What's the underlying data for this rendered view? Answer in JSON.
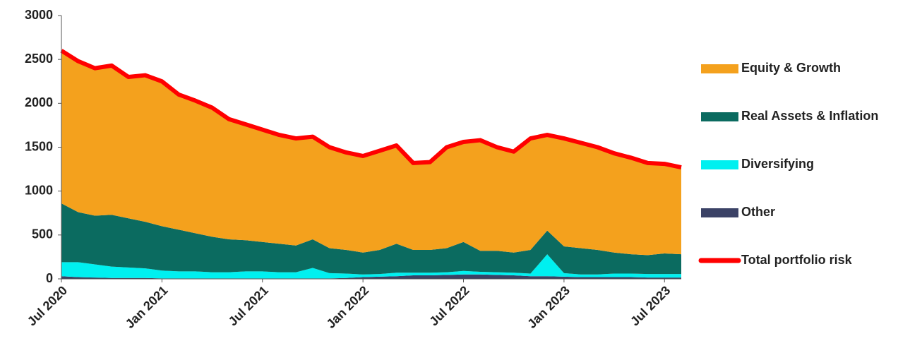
{
  "chart_data": {
    "type": "area",
    "stacked": true,
    "x": [
      "2020-07",
      "2020-08",
      "2020-09",
      "2020-10",
      "2020-11",
      "2020-12",
      "2021-01",
      "2021-02",
      "2021-03",
      "2021-04",
      "2021-05",
      "2021-06",
      "2021-07",
      "2021-08",
      "2021-09",
      "2021-10",
      "2021-11",
      "2021-12",
      "2022-01",
      "2022-02",
      "2022-03",
      "2022-04",
      "2022-05",
      "2022-06",
      "2022-07",
      "2022-08",
      "2022-09",
      "2022-10",
      "2022-11",
      "2022-12",
      "2023-01",
      "2023-02",
      "2023-03",
      "2023-04",
      "2023-05",
      "2023-06",
      "2023-07",
      "2023-08"
    ],
    "xlim": [
      "2020-07",
      "2023-08"
    ],
    "xticks": [
      {
        "value": "2020-07",
        "label": "Jul 2020"
      },
      {
        "value": "2021-01",
        "label": "Jan 2021"
      },
      {
        "value": "2021-07",
        "label": "Jul 2021"
      },
      {
        "value": "2022-01",
        "label": "Jan 2022"
      },
      {
        "value": "2022-07",
        "label": "Jul 2022"
      },
      {
        "value": "2023-01",
        "label": "Jan 2023"
      },
      {
        "value": "2023-07",
        "label": "Jul 2023"
      }
    ],
    "ylim": [
      0,
      3000
    ],
    "yticks": [
      0,
      500,
      1000,
      1500,
      2000,
      2500,
      3000
    ],
    "series": [
      {
        "name": "Equity & Growth",
        "color": "#f4a11d",
        "values": [
          1740,
          1720,
          1680,
          1700,
          1610,
          1670,
          1650,
          1540,
          1510,
          1470,
          1370,
          1320,
          1280,
          1240,
          1220,
          1170,
          1150,
          1110,
          1100,
          1130,
          1120,
          990,
          1000,
          1150,
          1140,
          1260,
          1180,
          1150,
          1270,
          1090,
          1230,
          1200,
          1170,
          1130,
          1100,
          1050,
          1020,
          990
        ]
      },
      {
        "name": "Real Assets & Inflation",
        "color": "#0b6b60",
        "values": [
          670,
          570,
          555,
          590,
          560,
          530,
          505,
          475,
          435,
          405,
          375,
          355,
          335,
          325,
          305,
          325,
          285,
          270,
          250,
          275,
          330,
          260,
          260,
          275,
          330,
          240,
          245,
          230,
          270,
          270,
          305,
          300,
          280,
          240,
          220,
          215,
          235,
          225
        ]
      },
      {
        "name": "Diversifying",
        "color": "#00f0f0",
        "values": [
          160,
          170,
          150,
          130,
          120,
          110,
          90,
          80,
          80,
          70,
          70,
          80,
          80,
          70,
          70,
          120,
          60,
          50,
          30,
          30,
          40,
          30,
          30,
          30,
          40,
          30,
          30,
          30,
          30,
          250,
          40,
          30,
          30,
          40,
          40,
          40,
          40,
          40
        ]
      },
      {
        "name": "Other",
        "color": "#3b4266",
        "values": [
          30,
          20,
          15,
          10,
          10,
          10,
          5,
          5,
          5,
          5,
          5,
          5,
          5,
          5,
          5,
          5,
          5,
          10,
          20,
          25,
          30,
          40,
          40,
          45,
          50,
          50,
          45,
          40,
          30,
          30,
          25,
          20,
          20,
          20,
          20,
          15,
          15,
          15
        ]
      },
      {
        "name": "Total portfolio risk",
        "type": "line",
        "color": "#ff0000",
        "values": [
          2600,
          2480,
          2400,
          2430,
          2300,
          2320,
          2250,
          2100,
          2030,
          1950,
          1820,
          1760,
          1700,
          1640,
          1600,
          1620,
          1500,
          1440,
          1400,
          1460,
          1520,
          1320,
          1330,
          1500,
          1560,
          1580,
          1500,
          1450,
          1600,
          1640,
          1600,
          1550,
          1500,
          1430,
          1380,
          1320,
          1310,
          1270
        ]
      }
    ]
  }
}
